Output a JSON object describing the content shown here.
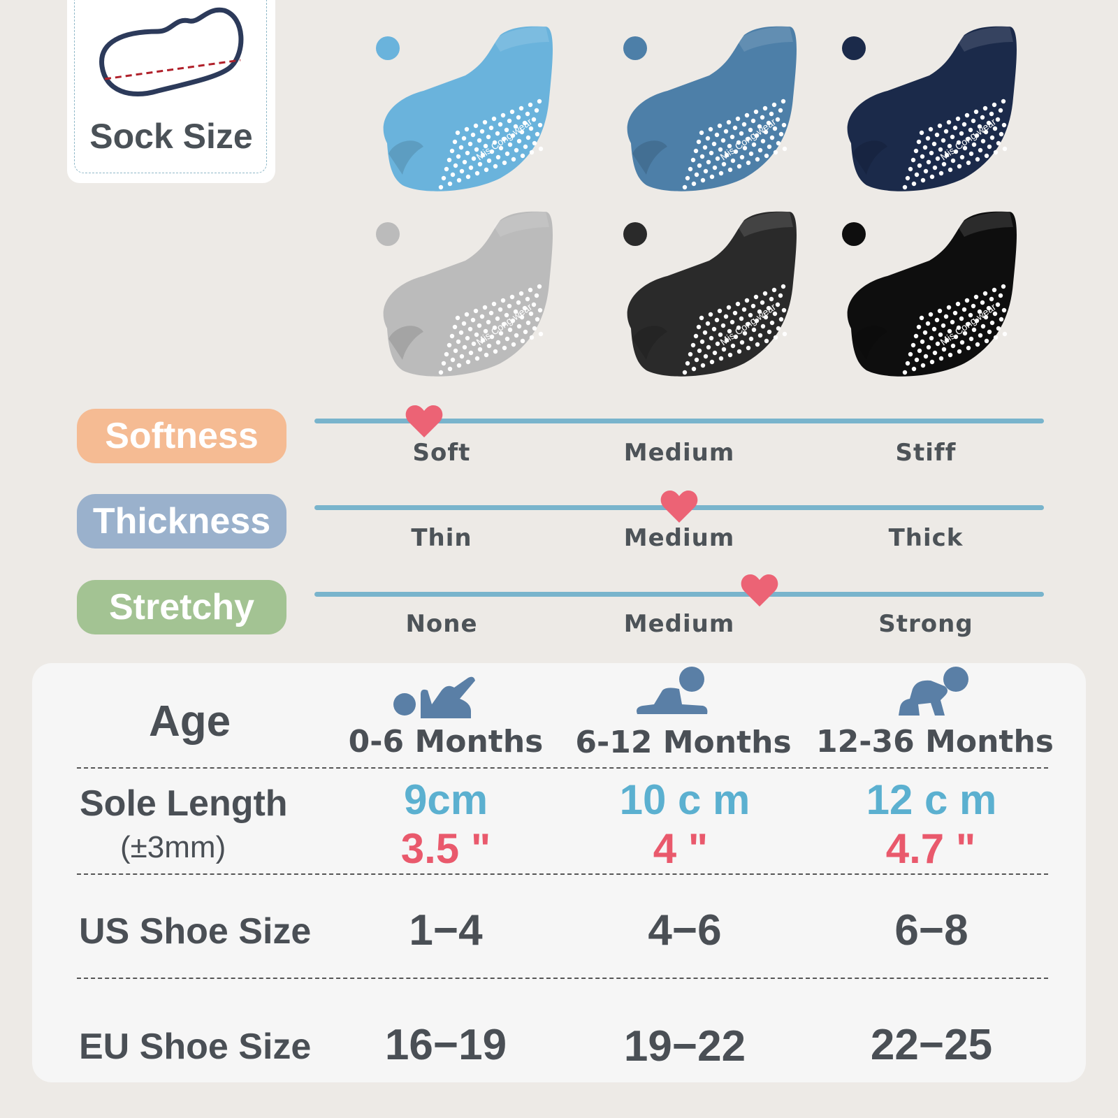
{
  "size_card": {
    "title": "Sock Size",
    "icon": "sock-outline-icon"
  },
  "sock_colors": [
    {
      "name": "sky-blue",
      "color": "#6ab3dc"
    },
    {
      "name": "steel-blue",
      "color": "#4d7fa8"
    },
    {
      "name": "navy",
      "color": "#1b2a4a"
    },
    {
      "name": "light-gray",
      "color": "#bbbbbb"
    },
    {
      "name": "charcoal",
      "color": "#2a2a2a"
    },
    {
      "name": "black",
      "color": "#0e0e0e"
    }
  ],
  "sock_brand": "Mis Cong wear",
  "ratings": [
    {
      "label": "Softness",
      "color": "#f5bb93",
      "levels": [
        "Soft",
        "Medium",
        "Stiff"
      ],
      "value": 0.15
    },
    {
      "label": "Thickness",
      "color": "#9ab1cc",
      "levels": [
        "Thin",
        "Medium",
        "Thick"
      ],
      "value": 0.5
    },
    {
      "label": "Stretchy",
      "color": "#a3c393",
      "levels": [
        "None",
        "Medium",
        "Strong"
      ],
      "value": 0.61
    }
  ],
  "accent_heart_color": "#ec6375",
  "track_color": "#79b4cc",
  "table": {
    "age_label": "Age",
    "ages": [
      {
        "text": "0-6 Months",
        "icon": "baby-lying-icon"
      },
      {
        "text": "6-12 Months",
        "icon": "baby-crawling-icon"
      },
      {
        "text": "12-36 Months",
        "icon": "baby-crawling-up-icon"
      }
    ],
    "sole_label": "Sole Length",
    "sole_tolerance": "(±3mm)",
    "sole_cm": [
      "9cm",
      "10 c m",
      "12 c m"
    ],
    "sole_in": [
      "3.5 \"",
      "4 \"",
      "4.7 \""
    ],
    "us_label": "US Shoe Size",
    "us_sizes": [
      "1−4",
      "4−6",
      "6−8"
    ],
    "eu_label": "EU Shoe Size",
    "eu_sizes": [
      "16−19",
      "19−22",
      "22−25"
    ],
    "cm_color": "#5bb0d0",
    "in_color": "#e9596c"
  }
}
